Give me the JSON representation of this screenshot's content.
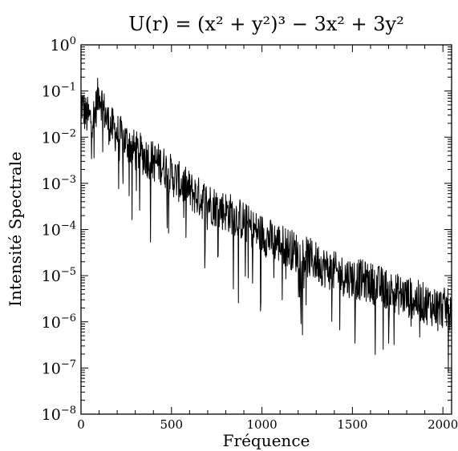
{
  "chart_data": {
    "type": "line",
    "title": "U(r) = (x² + y²)³ − 3x² + 3y²",
    "xlabel": "Fréquence",
    "ylabel": "Intensité Spectrale",
    "xlim": [
      0,
      2048
    ],
    "ylim": [
      1e-08,
      1
    ],
    "yscale": "log",
    "x_ticks": [
      0,
      500,
      1000,
      1500,
      2000
    ],
    "x_tick_labels": [
      "0",
      "500",
      "1000",
      "1500",
      "2000"
    ],
    "y_ticks": [
      1,
      0.1,
      0.01,
      0.001,
      0.0001,
      1e-05,
      1e-06,
      1e-07,
      1e-08
    ],
    "y_tick_labels": [
      "10^0",
      "10^−1",
      "10^−2",
      "10^−3",
      "10^−4",
      "10^−5",
      "10^−6",
      "10^−7",
      "10^−8"
    ],
    "grid": false,
    "line_color": "#000000",
    "series": [
      {
        "x": [
          0,
          25,
          50,
          75,
          100,
          125,
          150,
          200,
          250,
          300,
          350,
          400,
          450,
          500,
          550,
          600,
          650,
          700,
          750,
          800,
          850,
          900,
          950,
          1000,
          1050,
          1100,
          1150,
          1200,
          1250,
          1300,
          1350,
          1400,
          1450,
          1500,
          1550,
          1600,
          1650,
          1700,
          1750,
          1800,
          1850,
          1900,
          1950,
          2000,
          2048
        ],
        "values": [
          0.06,
          0.03,
          0.025,
          0.03,
          0.1,
          0.04,
          0.02,
          0.012,
          0.008,
          0.005,
          0.004,
          0.003,
          0.0025,
          0.0015,
          0.001,
          0.0007,
          0.0005,
          0.0004,
          0.0003,
          0.00025,
          0.0002,
          0.00015,
          0.0001,
          8e-05,
          6e-05,
          5e-05,
          4e-05,
          3e-05,
          2.5e-05,
          2e-05,
          1.5e-05,
          1.2e-05,
          1e-05,
          9e-06,
          8e-06,
          7e-06,
          6e-06,
          5e-06,
          4e-06,
          3.5e-06,
          3e-06,
          2.5e-06,
          2.2e-06,
          2e-06,
          1.8e-06
        ]
      }
    ]
  }
}
